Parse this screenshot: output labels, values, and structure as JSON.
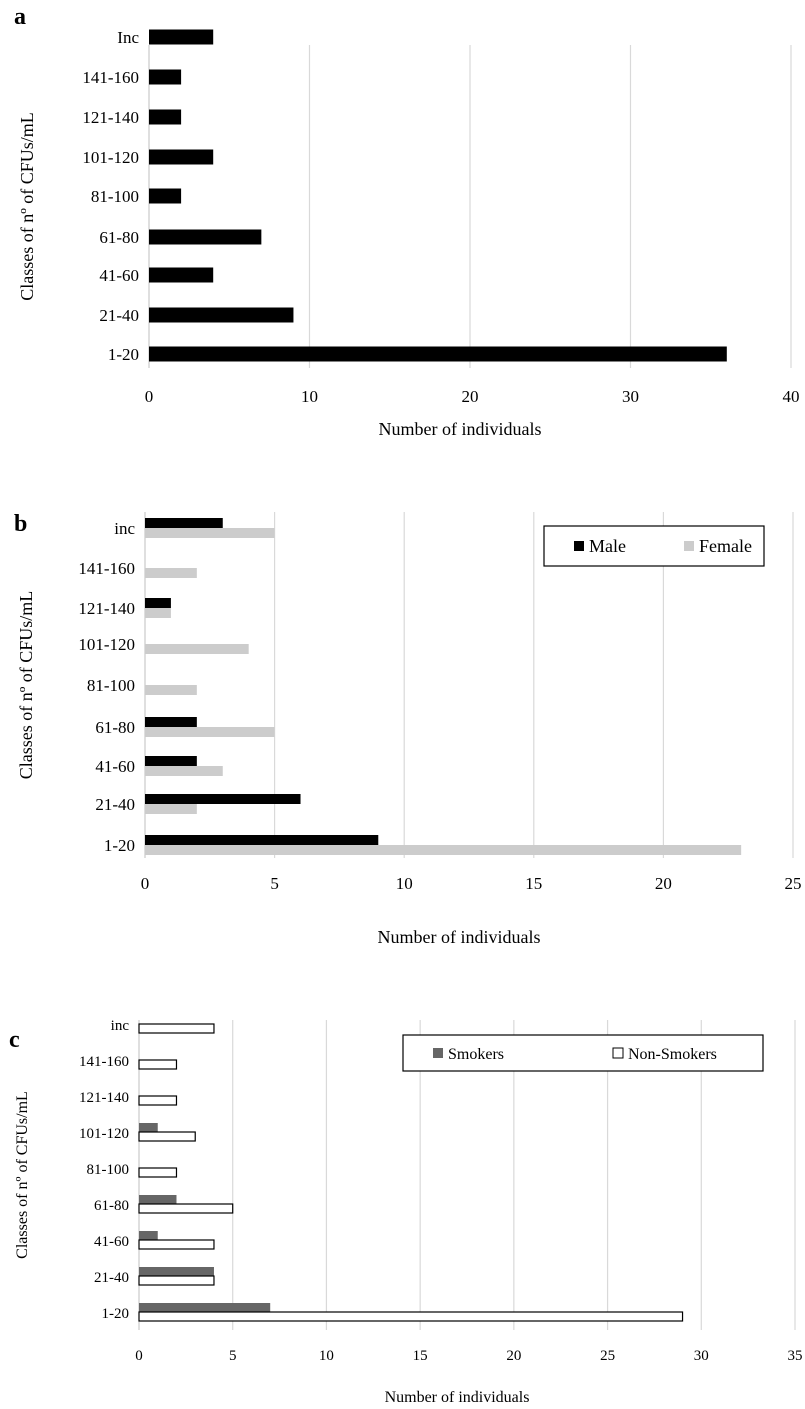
{
  "chart_data": [
    {
      "panel_label": "a",
      "type": "bar",
      "orientation": "horizontal",
      "categories": [
        "1-20",
        "21-40",
        "41-60",
        "61-80",
        "81-100",
        "101-120",
        "121-140",
        "141-160",
        "Inc"
      ],
      "series": [
        {
          "name": "",
          "values": [
            36,
            9,
            4,
            7,
            2,
            4,
            2,
            2,
            4
          ],
          "color": "#000000"
        }
      ],
      "xlabel": "Number of individuals",
      "ylabel": "Classes of nº of CFUs/mL",
      "xlim": [
        0,
        40
      ],
      "xticks": [
        "0",
        "10",
        "20",
        "30",
        "40"
      ],
      "grid": "vertical",
      "legend": "none"
    },
    {
      "panel_label": "b",
      "type": "bar",
      "orientation": "horizontal",
      "categories": [
        "1-20",
        "21-40",
        "41-60",
        "61-80",
        "81-100",
        "101-120",
        "121-140",
        "141-160",
        "inc"
      ],
      "series": [
        {
          "name": "Male",
          "values": [
            9,
            6,
            2,
            2,
            0,
            0,
            1,
            0,
            3
          ],
          "color": "#000000"
        },
        {
          "name": "Female",
          "values": [
            23,
            2,
            3,
            5,
            2,
            4,
            1,
            2,
            5
          ],
          "color": "#cccccc"
        }
      ],
      "xlabel": "Number of individuals",
      "ylabel": "Classes of nº of CFUs/mL",
      "xlim": [
        0,
        25
      ],
      "xticks": [
        "0",
        "5",
        "10",
        "15",
        "20",
        "25"
      ],
      "grid": "vertical",
      "legend": "top-right"
    },
    {
      "panel_label": "c",
      "type": "bar",
      "orientation": "horizontal",
      "categories": [
        "1-20",
        "21-40",
        "41-60",
        "61-80",
        "81-100",
        "101-120",
        "121-140",
        "141-160",
        "inc"
      ],
      "series": [
        {
          "name": "Smokers",
          "values": [
            7,
            4,
            1,
            2,
            0,
            1,
            0,
            0,
            0
          ],
          "color": "#666666"
        },
        {
          "name": "Non-Smokers",
          "values": [
            29,
            4,
            4,
            5,
            2,
            3,
            2,
            2,
            4
          ],
          "color": "#ffffff"
        }
      ],
      "xlabel": "Number of individuals",
      "ylabel": "Classes of nº of CFUs/mL",
      "xlim": [
        0,
        35
      ],
      "xticks": [
        "0",
        "5",
        "10",
        "15",
        "20",
        "25",
        "30",
        "35"
      ],
      "grid": "vertical",
      "legend": "top-right"
    }
  ]
}
